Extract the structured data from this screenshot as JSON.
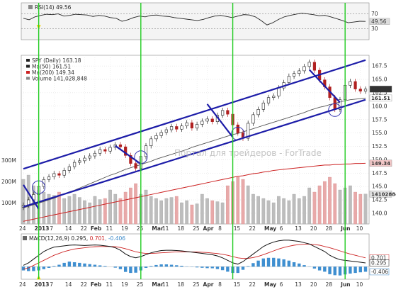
{
  "watermark": "Портал для трейдеров - ForTrade",
  "chart_data": [
    {
      "type": "line",
      "panel": "rsi",
      "title": "RSI(14) 49.56",
      "series": [
        {
          "name": "RSI(14) 49.56",
          "color": "#222222",
          "values": [
            58,
            54,
            62,
            66,
            69,
            68,
            70,
            64,
            66,
            69,
            68,
            67,
            63,
            66,
            64,
            60,
            58,
            50,
            54,
            60,
            64,
            62,
            66,
            67,
            64,
            63,
            60,
            58,
            56,
            54,
            52,
            55,
            60,
            64,
            66,
            63,
            60,
            64,
            68,
            67,
            62,
            52,
            40,
            46,
            55,
            62,
            66,
            69,
            72,
            70,
            68,
            65,
            66,
            62,
            57,
            52,
            46,
            48,
            50,
            49.56
          ]
        }
      ],
      "ylim": [
        0,
        100
      ],
      "y_ticks": [
        30,
        49.56,
        70
      ],
      "y_tick_labels": [
        "30",
        "49.56",
        "70"
      ],
      "guide_lines": [
        30,
        70
      ],
      "markers": [
        {
          "x_index": 3,
          "value": 36,
          "color": "#f2d200"
        }
      ]
    },
    {
      "type": "line",
      "panel": "price",
      "title": "SPY (Daily) 163.18",
      "legend": [
        {
          "label": "SPY (Daily) 163.18",
          "color": "#222222"
        },
        {
          "label": "Ma(50) 161.51",
          "color": "#222222"
        },
        {
          "label": "Ma(200) 149.34",
          "color": "#cc2222"
        },
        {
          "label": "Volume 141,028,848",
          "color": "#888888"
        }
      ],
      "x_tick_labels": [
        "24",
        "2013",
        "7",
        "14",
        "22",
        "Feb",
        "11",
        "19",
        "25",
        "Mar",
        "11",
        "18",
        "25",
        "Apr",
        "8",
        "15",
        "22",
        "May",
        "6",
        "13",
        "20",
        "28",
        "Jun",
        "10"
      ],
      "y_ticks": [
        140,
        142.5,
        145,
        147.5,
        150,
        152.5,
        155,
        157.5,
        160,
        162.5,
        165,
        167.5
      ],
      "y_tick_labels": [
        "140.0",
        "142.5",
        "145.0",
        "147.5",
        "150.0",
        "152.5",
        "155.0",
        "157.5",
        "160.0",
        "162.5",
        "165.0",
        "167.5"
      ],
      "price_labels": [
        "163.18",
        "161.51",
        "149.34",
        "141028848"
      ],
      "volume_axis_labels": [
        "300M",
        "200M",
        "100M"
      ],
      "ylim": [
        138.0,
        169.5
      ],
      "close": [
        141.5,
        142.5,
        143.5,
        145,
        146.3,
        146.8,
        147.4,
        147.1,
        148,
        148.7,
        149.5,
        149.8,
        150.3,
        150.7,
        151.2,
        151.9,
        151.6,
        152.3,
        152.8,
        152.4,
        150.8,
        149.3,
        148.4,
        150.6,
        152.6,
        153.9,
        154.5,
        155.1,
        155.6,
        156.2,
        155.7,
        156.3,
        156.9,
        155.9,
        156.6,
        157.2,
        157.6,
        157.1,
        158.3,
        159.2,
        158.5,
        156.5,
        155,
        154,
        156.8,
        158.4,
        159.4,
        160.6,
        161.6,
        161.9,
        163.4,
        164.4,
        165.6,
        166.1,
        166.6,
        167.4,
        168.2,
        166.7,
        164.9,
        163.6,
        161.6,
        159.4,
        161.2,
        163.9,
        164.6,
        163.2,
        162.8,
        163.18
      ],
      "ma50": [
        141,
        141.3,
        141.6,
        141.9,
        142.2,
        142.5,
        142.8,
        143.2,
        143.6,
        144,
        144.3,
        144.7,
        145.1,
        145.5,
        145.9,
        146.3,
        146.7,
        147.1,
        147.4,
        147.8,
        148.2,
        148.5,
        148.8,
        149.1,
        149.4,
        149.7,
        150.1,
        150.4,
        150.7,
        151,
        151.3,
        151.6,
        151.9,
        152.3,
        152.6,
        152.9,
        153.2,
        153.5,
        153.8,
        154.1,
        154.4,
        154.7,
        154.9,
        155.2,
        155.5,
        155.8,
        156.1,
        156.4,
        156.7,
        157,
        157.3,
        157.6,
        157.9,
        158.2,
        158.5,
        158.8,
        159.2,
        159.5,
        159.8,
        160,
        160.3,
        160.5,
        160.8,
        161,
        161.2,
        161.3,
        161.4,
        161.51
      ],
      "ma200": [
        138.5,
        138.7,
        138.9,
        139.1,
        139.3,
        139.5,
        139.7,
        139.9,
        140.1,
        140.3,
        140.5,
        140.7,
        140.9,
        141.1,
        141.3,
        141.5,
        141.7,
        141.9,
        142.1,
        142.3,
        142.5,
        142.7,
        142.9,
        143.1,
        143.3,
        143.5,
        143.7,
        143.9,
        144.1,
        144.3,
        144.5,
        144.7,
        144.9,
        145.1,
        145.3,
        145.5,
        145.7,
        145.9,
        146.1,
        146.3,
        146.5,
        146.7,
        146.9,
        147,
        147.2,
        147.4,
        147.5,
        147.7,
        147.8,
        148,
        148.1,
        148.2,
        148.3,
        148.4,
        148.5,
        148.6,
        148.7,
        148.8,
        148.9,
        149,
        149,
        149.1,
        149.1,
        149.2,
        149.2,
        149.3,
        149.3,
        149.34
      ],
      "volume_millions": [
        210,
        230,
        180,
        160,
        150,
        140,
        135,
        150,
        120,
        130,
        140,
        125,
        110,
        100,
        130,
        115,
        120,
        160,
        140,
        120,
        150,
        170,
        190,
        140,
        160,
        130,
        120,
        110,
        120,
        125,
        130,
        100,
        110,
        90,
        95,
        140,
        120,
        110,
        105,
        100,
        180,
        200,
        220,
        210,
        180,
        140,
        130,
        120,
        110,
        100,
        130,
        120,
        110,
        140,
        120,
        130,
        170,
        150,
        180,
        200,
        220,
        190,
        160,
        170,
        180,
        150,
        140,
        141.03
      ],
      "channel_lines": [
        {
          "from": [
            0,
            141.2
          ],
          "to": [
            67,
            161.2
          ],
          "color": "#1c1ca8"
        },
        {
          "from": [
            0,
            148.3
          ],
          "to": [
            67,
            168.6
          ],
          "color": "#1c1ca8"
        },
        {
          "from": [
            0,
            145.3
          ],
          "to": [
            3,
            140.8
          ],
          "color": "#1c1ca8"
        },
        {
          "from": [
            18,
            152.6
          ],
          "to": [
            23,
            149.2
          ],
          "color": "#1c1ca8"
        },
        {
          "from": [
            36,
            160.4
          ],
          "to": [
            41,
            154.2
          ],
          "color": "#1c1ca8"
        },
        {
          "from": [
            56,
            166.8
          ],
          "to": [
            62,
            160.7
          ],
          "color": "#1c1ca8"
        }
      ],
      "circles_at": [
        3,
        23,
        42,
        61
      ],
      "vertical_markers_at": [
        3,
        23,
        41,
        63
      ],
      "vertical_marker_color": "#22cc22"
    },
    {
      "type": "bar",
      "panel": "macd",
      "title": "MACD(12,26,9) 0.295, 0.701, -0.406",
      "legend_parts": [
        "MACD(12,26,9) 0.295, ",
        "0.701",
        ", -0.406"
      ],
      "legend_colors": [
        "#222222",
        "#cc2222",
        "#3a88c8"
      ],
      "macd": [
        0.1,
        0.3,
        0.6,
        0.9,
        1.2,
        1.4,
        1.55,
        1.6,
        1.65,
        1.7,
        1.72,
        1.7,
        1.68,
        1.7,
        1.72,
        1.7,
        1.65,
        1.6,
        1.5,
        1.3,
        1.0,
        0.8,
        0.7,
        0.8,
        0.95,
        1.1,
        1.2,
        1.28,
        1.3,
        1.3,
        1.28,
        1.25,
        1.2,
        1.15,
        1.1,
        1.05,
        1.0,
        0.95,
        0.85,
        0.7,
        0.5,
        0.3,
        0.2,
        0.4,
        0.7,
        1.0,
        1.3,
        1.6,
        1.8,
        1.95,
        2.05,
        2.1,
        2.1,
        2.05,
        2.0,
        1.9,
        1.8,
        1.6,
        1.4,
        1.2,
        0.9,
        0.7,
        0.55,
        0.5,
        0.45,
        0.4,
        0.35,
        0.295
      ],
      "signal": [
        -0.2,
        -0.1,
        0.1,
        0.3,
        0.5,
        0.7,
        0.9,
        1.05,
        1.2,
        1.3,
        1.4,
        1.45,
        1.5,
        1.55,
        1.58,
        1.6,
        1.6,
        1.6,
        1.58,
        1.52,
        1.42,
        1.3,
        1.18,
        1.1,
        1.05,
        1.05,
        1.07,
        1.1,
        1.12,
        1.15,
        1.17,
        1.18,
        1.18,
        1.17,
        1.16,
        1.14,
        1.12,
        1.08,
        1.04,
        0.98,
        0.9,
        0.8,
        0.7,
        0.65,
        0.66,
        0.72,
        0.82,
        0.95,
        1.1,
        1.25,
        1.4,
        1.52,
        1.62,
        1.7,
        1.75,
        1.78,
        1.78,
        1.75,
        1.7,
        1.6,
        1.5,
        1.38,
        1.25,
        1.12,
        1.0,
        0.9,
        0.8,
        0.701
      ],
      "histogram": [
        -0.3,
        -0.35,
        -0.35,
        -0.3,
        -0.2,
        -0.1,
        0.05,
        0.15,
        0.3,
        0.4,
        0.35,
        0.3,
        0.25,
        0.2,
        0.15,
        0.1,
        0.05,
        0,
        -0.08,
        -0.2,
        -0.42,
        -0.5,
        -0.48,
        -0.3,
        -0.1,
        0.05,
        0.13,
        0.18,
        0.18,
        0.15,
        0.11,
        0.07,
        0.02,
        -0.02,
        -0.06,
        -0.09,
        -0.12,
        -0.13,
        -0.19,
        -0.28,
        -0.4,
        -0.5,
        -0.5,
        -0.25,
        0.04,
        0.28,
        0.48,
        0.65,
        0.7,
        0.7,
        0.65,
        0.58,
        0.48,
        0.35,
        0.25,
        0.12,
        0.02,
        -0.15,
        -0.3,
        -0.4,
        -0.6,
        -0.68,
        -0.7,
        -0.62,
        -0.55,
        -0.5,
        -0.45,
        -0.406
      ],
      "y_tick_labels": [
        "0.701",
        "0.295",
        "-0.406"
      ],
      "ylim": [
        -1.0,
        2.6
      ],
      "x_tick_labels": [
        "24",
        "2013",
        "7",
        "14",
        "22",
        "Feb",
        "11",
        "19",
        "25",
        "Mar",
        "11",
        "18",
        "25",
        "Apr",
        "8",
        "15",
        "22",
        "May",
        "6",
        "13",
        "20",
        "28",
        "Jun",
        "10"
      ],
      "markers": [
        {
          "x_index": 3,
          "value": -0.85,
          "color": "#f2d200"
        }
      ]
    }
  ]
}
